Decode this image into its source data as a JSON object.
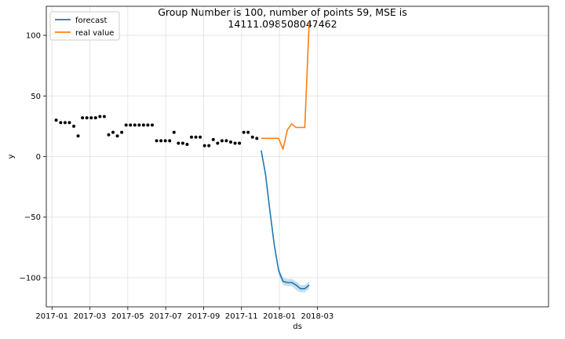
{
  "chart_data": {
    "type": "line",
    "title_line1": "Group Number is 100, number of points 59, MSE is",
    "title_line2": "14111.098508047462",
    "xlabel": "ds",
    "ylabel": "y",
    "ylim": [
      -124,
      124
    ],
    "xlim_months": [
      -0.3,
      26.2
    ],
    "grid": true,
    "legend_position": "top-left",
    "x_ticks": [
      {
        "m": 0,
        "label": "2017-01"
      },
      {
        "m": 2,
        "label": "2017-03"
      },
      {
        "m": 4,
        "label": "2017-05"
      },
      {
        "m": 6,
        "label": "2017-07"
      },
      {
        "m": 8,
        "label": "2017-09"
      },
      {
        "m": 10,
        "label": "2017-11"
      },
      {
        "m": 12,
        "label": "2018-01"
      },
      {
        "m": 14,
        "label": "2018-03"
      }
    ],
    "y_ticks": [
      {
        "v": 100,
        "label": "100"
      },
      {
        "v": 50,
        "label": "50"
      },
      {
        "v": 0,
        "label": "0"
      },
      {
        "v": -50,
        "label": "−50"
      },
      {
        "v": -100,
        "label": "−100"
      }
    ],
    "history_points": [
      [
        0.22,
        30
      ],
      [
        0.46,
        28
      ],
      [
        0.69,
        28
      ],
      [
        0.92,
        28
      ],
      [
        1.15,
        25
      ],
      [
        1.38,
        17
      ],
      [
        1.61,
        32
      ],
      [
        1.84,
        32
      ],
      [
        2.07,
        32
      ],
      [
        2.3,
        32
      ],
      [
        2.53,
        33
      ],
      [
        2.76,
        33
      ],
      [
        2.99,
        18
      ],
      [
        3.22,
        20
      ],
      [
        3.45,
        17
      ],
      [
        3.68,
        20
      ],
      [
        3.91,
        26
      ],
      [
        4.14,
        26
      ],
      [
        4.37,
        26
      ],
      [
        4.6,
        26
      ],
      [
        4.83,
        26
      ],
      [
        5.06,
        26
      ],
      [
        5.29,
        26
      ],
      [
        5.52,
        13
      ],
      [
        5.75,
        13
      ],
      [
        5.98,
        13
      ],
      [
        6.21,
        13
      ],
      [
        6.44,
        20
      ],
      [
        6.67,
        11
      ],
      [
        6.9,
        11
      ],
      [
        7.13,
        10
      ],
      [
        7.36,
        16
      ],
      [
        7.59,
        16
      ],
      [
        7.82,
        16
      ],
      [
        8.05,
        9
      ],
      [
        8.28,
        9
      ],
      [
        8.51,
        14
      ],
      [
        8.74,
        11
      ],
      [
        8.97,
        13
      ],
      [
        9.2,
        13
      ],
      [
        9.43,
        12
      ],
      [
        9.66,
        11
      ],
      [
        9.89,
        11
      ],
      [
        10.12,
        20
      ],
      [
        10.35,
        20
      ],
      [
        10.58,
        16
      ],
      [
        10.81,
        15
      ]
    ],
    "series": [
      {
        "name": "forecast",
        "color": "#1f77b4",
        "points": [
          [
            11.04,
            5
          ],
          [
            11.27,
            -15
          ],
          [
            11.5,
            -45
          ],
          [
            11.73,
            -73
          ],
          [
            11.96,
            -94
          ],
          [
            12.19,
            -103
          ],
          [
            12.42,
            -104
          ],
          [
            12.65,
            -104
          ],
          [
            12.88,
            -106
          ],
          [
            13.11,
            -109
          ],
          [
            13.34,
            -109
          ],
          [
            13.57,
            -106
          ]
        ],
        "band_upper": [
          [
            11.04,
            7
          ],
          [
            11.27,
            -13
          ],
          [
            11.5,
            -43
          ],
          [
            11.73,
            -71
          ],
          [
            11.96,
            -92
          ],
          [
            12.19,
            -100
          ],
          [
            12.42,
            -101
          ],
          [
            12.65,
            -101
          ],
          [
            12.88,
            -103
          ],
          [
            13.11,
            -106
          ],
          [
            13.34,
            -106
          ],
          [
            13.57,
            -103
          ]
        ],
        "band_lower": [
          [
            11.04,
            3
          ],
          [
            11.27,
            -17
          ],
          [
            11.5,
            -47
          ],
          [
            11.73,
            -75
          ],
          [
            11.96,
            -97
          ],
          [
            12.19,
            -106
          ],
          [
            12.42,
            -107
          ],
          [
            12.65,
            -107
          ],
          [
            12.88,
            -110
          ],
          [
            13.11,
            -112
          ],
          [
            13.34,
            -112
          ],
          [
            13.57,
            -109
          ]
        ],
        "band_color": "#1f77b4"
      },
      {
        "name": "real value",
        "color": "#ff7f0e",
        "points": [
          [
            11.04,
            15
          ],
          [
            11.27,
            15
          ],
          [
            11.5,
            15
          ],
          [
            11.73,
            15
          ],
          [
            11.96,
            15
          ],
          [
            12.19,
            6
          ],
          [
            12.42,
            22
          ],
          [
            12.65,
            27
          ],
          [
            12.88,
            24
          ],
          [
            13.11,
            24
          ],
          [
            13.34,
            24
          ],
          [
            13.57,
            111
          ]
        ]
      }
    ]
  }
}
